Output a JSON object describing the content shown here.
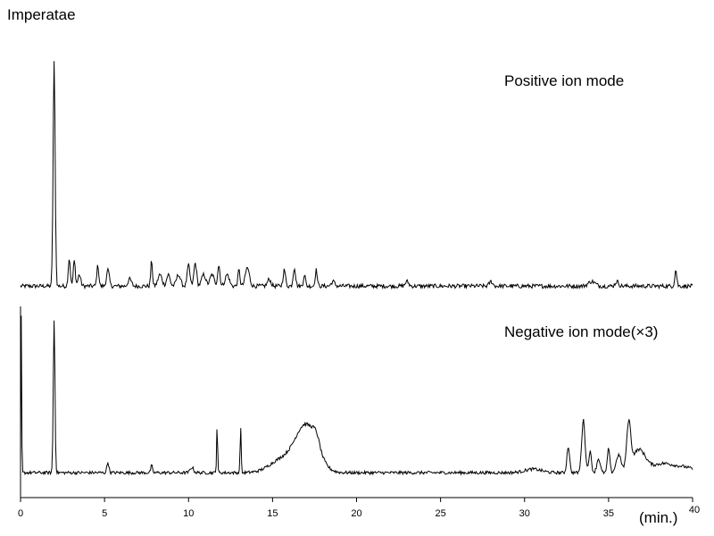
{
  "chart_data": {
    "type": "line",
    "title": "Imperatae",
    "xlabel": "(min.)",
    "ylabel": "",
    "xlim": [
      0,
      40
    ],
    "x_ticks": [
      0,
      5,
      10,
      15,
      20,
      25,
      30,
      35,
      40
    ],
    "grid": false,
    "legend": "none",
    "colors": {
      "trace": "#000000",
      "axis": "#000000",
      "background": "#ffffff"
    },
    "series": [
      {
        "label": "Positive ion mode",
        "baseline": 0.03,
        "peaks": [
          [
            2.0,
            0.97,
            0.06
          ],
          [
            2.9,
            0.12,
            0.06
          ],
          [
            3.2,
            0.11,
            0.06
          ],
          [
            3.5,
            0.05,
            0.08
          ],
          [
            4.6,
            0.09,
            0.06
          ],
          [
            5.2,
            0.07,
            0.08
          ],
          [
            6.5,
            0.03,
            0.1
          ],
          [
            7.8,
            0.11,
            0.05
          ],
          [
            8.3,
            0.05,
            0.12
          ],
          [
            8.8,
            0.05,
            0.1
          ],
          [
            9.4,
            0.05,
            0.12
          ],
          [
            10.0,
            0.09,
            0.08
          ],
          [
            10.4,
            0.1,
            0.08
          ],
          [
            10.9,
            0.05,
            0.12
          ],
          [
            11.4,
            0.05,
            0.12
          ],
          [
            11.8,
            0.09,
            0.07
          ],
          [
            12.3,
            0.05,
            0.12
          ],
          [
            13.0,
            0.07,
            0.06
          ],
          [
            13.5,
            0.08,
            0.12
          ],
          [
            14.8,
            0.03,
            0.1
          ],
          [
            15.7,
            0.07,
            0.07
          ],
          [
            16.3,
            0.08,
            0.07
          ],
          [
            16.9,
            0.05,
            0.06
          ],
          [
            17.6,
            0.07,
            0.06
          ],
          [
            18.6,
            0.02,
            0.1
          ],
          [
            23.0,
            0.02,
            0.1
          ],
          [
            28.0,
            0.02,
            0.1
          ],
          [
            34.0,
            0.02,
            0.2
          ],
          [
            35.5,
            0.02,
            0.1
          ],
          [
            39.0,
            0.07,
            0.06
          ]
        ]
      },
      {
        "label": "Negative ion mode(×3)",
        "baseline": 0.035,
        "peaks": [
          [
            0.05,
            0.93,
            0.02
          ],
          [
            2.0,
            0.87,
            0.05
          ],
          [
            5.2,
            0.06,
            0.06
          ],
          [
            7.8,
            0.04,
            0.05
          ],
          [
            10.2,
            0.03,
            0.1
          ],
          [
            11.7,
            0.27,
            0.03
          ],
          [
            13.1,
            0.27,
            0.03
          ],
          [
            15.5,
            0.07,
            0.7
          ],
          [
            17.0,
            0.27,
            0.65
          ],
          [
            17.6,
            0.06,
            0.2
          ],
          [
            32.6,
            0.15,
            0.08
          ],
          [
            33.5,
            0.3,
            0.1
          ],
          [
            33.9,
            0.12,
            0.08
          ],
          [
            34.4,
            0.08,
            0.1
          ],
          [
            35.0,
            0.14,
            0.07
          ],
          [
            35.6,
            0.1,
            0.15
          ],
          [
            36.2,
            0.26,
            0.12
          ],
          [
            36.8,
            0.13,
            0.4
          ],
          [
            38.2,
            0.05,
            0.6
          ],
          [
            39.5,
            0.03,
            0.6
          ],
          [
            30.5,
            0.02,
            0.5
          ]
        ]
      }
    ]
  }
}
